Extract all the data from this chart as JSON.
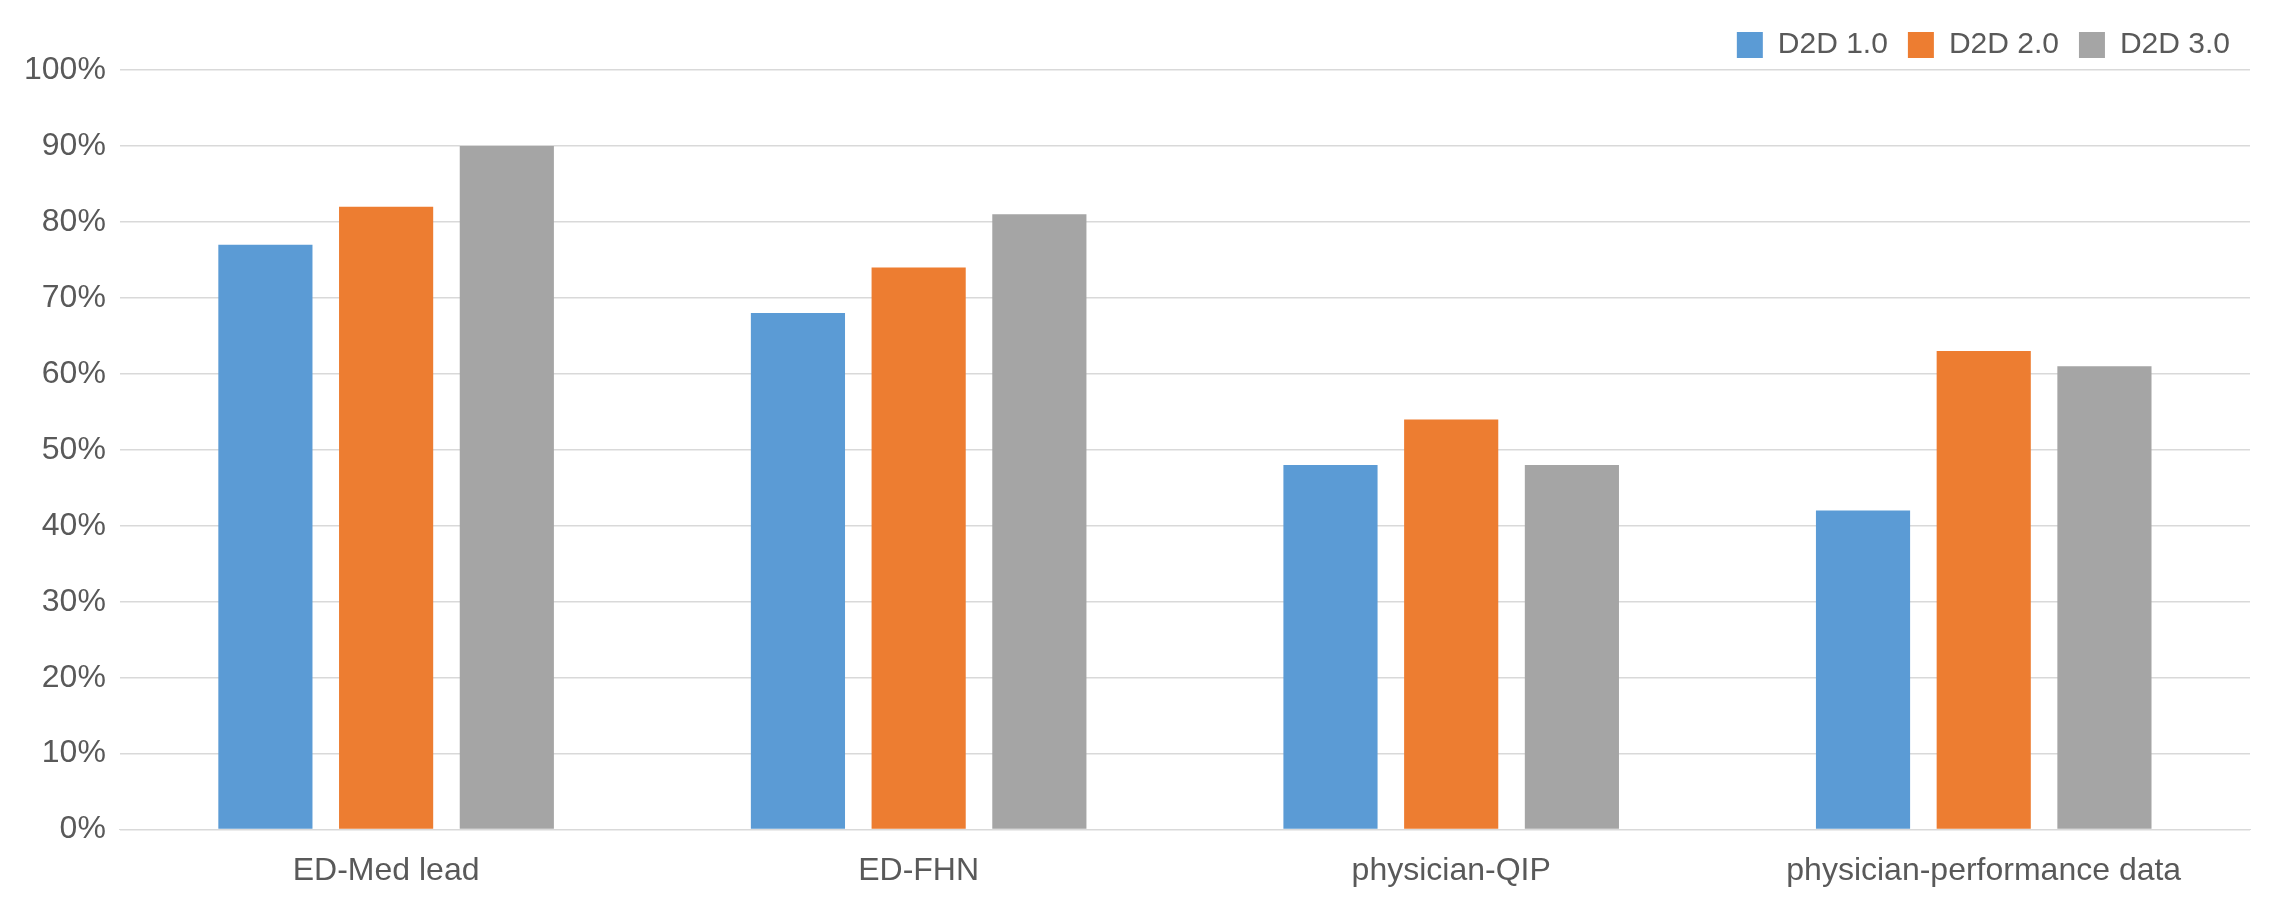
{
  "chart_data": {
    "type": "bar",
    "categories": [
      "ED-Med lead",
      "ED-FHN",
      "physician-QIP",
      "physician-performance data"
    ],
    "series": [
      {
        "name": "D2D 1.0",
        "color": "#5b9bd5",
        "values": [
          77,
          68,
          48,
          42
        ]
      },
      {
        "name": "D2D 2.0",
        "color": "#ed7d31",
        "values": [
          82,
          74,
          54,
          63
        ]
      },
      {
        "name": "D2D 3.0",
        "color": "#a5a5a5",
        "values": [
          90,
          81,
          48,
          61
        ]
      }
    ],
    "ylim": [
      0,
      100
    ],
    "yticks": [
      {
        "value": 0,
        "label": "0%"
      },
      {
        "value": 10,
        "label": "10%"
      },
      {
        "value": 20,
        "label": "20%"
      },
      {
        "value": 30,
        "label": "30%"
      },
      {
        "value": 40,
        "label": "40%"
      },
      {
        "value": 50,
        "label": "50%"
      },
      {
        "value": 60,
        "label": "60%"
      },
      {
        "value": 70,
        "label": "70%"
      },
      {
        "value": 80,
        "label": "80%"
      },
      {
        "value": 90,
        "label": "90%"
      },
      {
        "value": 100,
        "label": "100%"
      }
    ],
    "grid": "y",
    "legend": "top right"
  }
}
